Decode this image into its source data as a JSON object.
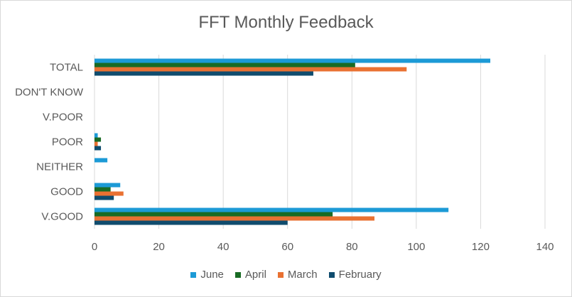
{
  "chart_data": {
    "type": "bar",
    "orientation": "horizontal",
    "title": "FFT Monthly Feedback",
    "categories": [
      "TOTAL",
      "DON'T KNOW",
      "V.POOR",
      "POOR",
      "NEITHER",
      "GOOD",
      "V.GOOD"
    ],
    "series": [
      {
        "name": "June",
        "color": "#1c9ad6",
        "values": [
          123,
          0,
          0,
          1,
          4,
          8,
          110
        ]
      },
      {
        "name": "April",
        "color": "#196b24",
        "values": [
          81,
          0,
          0,
          2,
          0,
          5,
          74
        ]
      },
      {
        "name": "March",
        "color": "#e97132",
        "values": [
          97,
          0,
          0,
          1,
          0,
          9,
          87
        ]
      },
      {
        "name": "February",
        "color": "#0f4c6e",
        "values": [
          68,
          0,
          0,
          2,
          0,
          6,
          60
        ]
      }
    ],
    "xlim": [
      0,
      140
    ],
    "xticks": [
      "0",
      "20",
      "40",
      "60",
      "80",
      "100",
      "120",
      "140"
    ],
    "grid": true,
    "legend_position": "bottom"
  }
}
